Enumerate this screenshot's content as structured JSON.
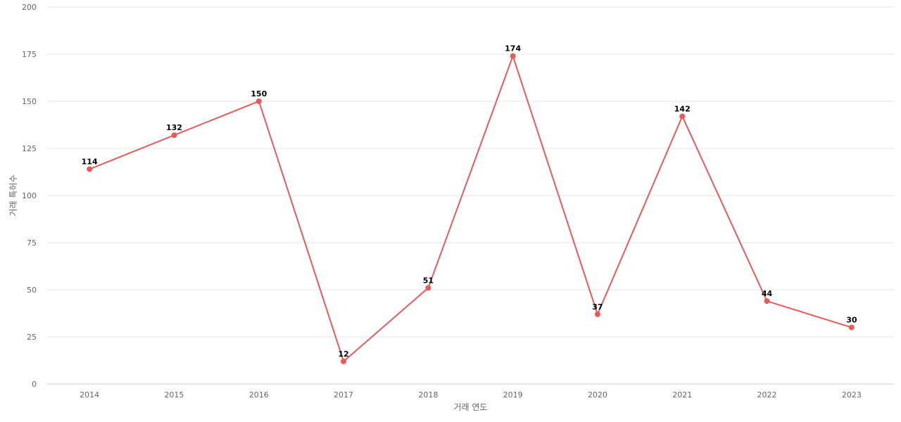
{
  "chart_data": {
    "type": "line",
    "title": "",
    "xlabel": "거래 연도",
    "ylabel": "거래 특허수",
    "categories": [
      "2014",
      "2015",
      "2016",
      "2017",
      "2018",
      "2019",
      "2020",
      "2021",
      "2022",
      "2023"
    ],
    "series": [
      {
        "values": [
          114,
          132,
          150,
          12,
          51,
          174,
          37,
          142,
          44,
          30
        ],
        "color": "#e85a5a"
      }
    ],
    "ylim": [
      0,
      200
    ],
    "yticks": [
      0,
      25,
      50,
      75,
      100,
      125,
      150,
      175,
      200
    ],
    "grid": true,
    "legend": "none",
    "data_labels": true
  }
}
